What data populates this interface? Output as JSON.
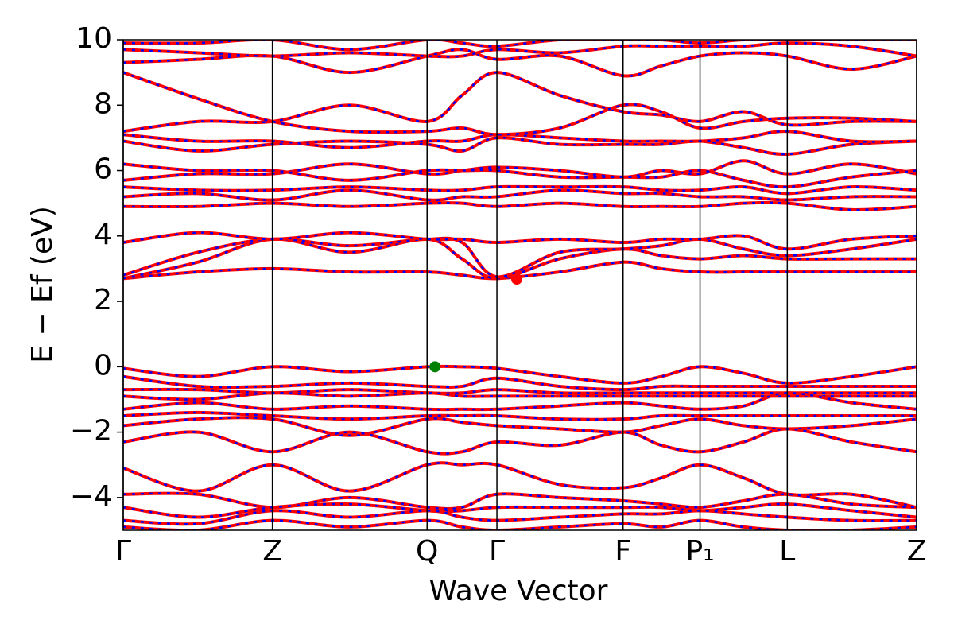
{
  "chart_data": {
    "type": "band_structure",
    "xlabel": "Wave Vector",
    "ylabel": "E − Ef (eV)",
    "xlim": [
      0,
      1
    ],
    "ylim": [
      -5,
      10
    ],
    "xticks": [
      {
        "value": 0,
        "label": "Γ"
      },
      {
        "value": 0.188,
        "label": "Z"
      },
      {
        "value": 0.383,
        "label": "Q"
      },
      {
        "value": 0.471,
        "label": "Γ"
      },
      {
        "value": 0.63,
        "label": "F"
      },
      {
        "value": 0.727,
        "label": "P₁"
      },
      {
        "value": 0.837,
        "label": "L"
      },
      {
        "value": 1.0,
        "label": "Z"
      }
    ],
    "yticks": [
      {
        "value": -4,
        "label": "−4"
      },
      {
        "value": -2,
        "label": "−2"
      },
      0,
      2,
      4,
      6,
      8,
      10
    ],
    "color": "#ff0000",
    "dash_color": "#0000ff",
    "x": [
      0,
      0.094,
      0.188,
      0.285,
      0.383,
      0.427,
      0.471,
      0.55,
      0.63,
      0.678,
      0.727,
      0.782,
      0.837,
      0.918,
      1.0
    ],
    "bands": [
      {
        "values": [
          -0.05,
          -0.3,
          0.0,
          -0.15,
          0.0,
          0.0,
          -0.05,
          -0.3,
          -0.5,
          -0.3,
          0.0,
          -0.2,
          -0.5,
          -0.3,
          0.0
        ]
      },
      {
        "values": [
          -0.3,
          -0.6,
          -0.6,
          -0.5,
          -0.6,
          -0.6,
          -0.35,
          -0.6,
          -0.7,
          -0.6,
          -0.6,
          -0.6,
          -0.6,
          -0.6,
          -0.6
        ]
      },
      {
        "values": [
          -0.7,
          -0.7,
          -0.8,
          -0.7,
          -0.8,
          -0.8,
          -0.7,
          -0.8,
          -0.8,
          -0.8,
          -0.8,
          -0.8,
          -0.8,
          -0.8,
          -0.8
        ]
      },
      {
        "values": [
          -0.9,
          -1.0,
          -0.8,
          -0.9,
          -0.8,
          -0.9,
          -0.9,
          -0.9,
          -0.9,
          -0.9,
          -0.9,
          -0.9,
          -0.9,
          -0.9,
          -0.9
        ]
      },
      {
        "values": [
          -1.3,
          -1.1,
          -1.3,
          -1.2,
          -1.3,
          -1.3,
          -1.3,
          -1.2,
          -1.1,
          -1.2,
          -1.3,
          -1.2,
          -0.8,
          -1.1,
          -1.3
        ]
      },
      {
        "values": [
          -1.5,
          -1.4,
          -1.5,
          -1.6,
          -1.5,
          -1.5,
          -1.5,
          -1.6,
          -1.6,
          -1.5,
          -1.5,
          -1.5,
          -1.5,
          -1.5,
          -1.5
        ]
      },
      {
        "values": [
          -1.8,
          -1.6,
          -1.6,
          -2.1,
          -1.6,
          -1.7,
          -1.8,
          -1.9,
          -2.0,
          -1.8,
          -1.6,
          -1.8,
          -1.9,
          -1.8,
          -1.6
        ]
      },
      {
        "values": [
          -2.3,
          -2.0,
          -2.6,
          -2.0,
          -2.6,
          -2.6,
          -2.3,
          -2.4,
          -2.0,
          -2.4,
          -2.6,
          -2.3,
          -1.9,
          -2.3,
          -2.6
        ]
      },
      {
        "values": [
          -3.1,
          -3.8,
          -3.0,
          -3.8,
          -3.0,
          -3.0,
          -3.0,
          -3.6,
          -3.7,
          -3.4,
          -3.0,
          -3.4,
          -3.9,
          -3.9,
          -4.3
        ]
      },
      {
        "values": [
          -3.9,
          -3.9,
          -4.3,
          -4.0,
          -4.3,
          -4.3,
          -3.9,
          -4.0,
          -4.1,
          -4.2,
          -4.3,
          -4.1,
          -3.9,
          -4.2,
          -4.3
        ]
      },
      {
        "values": [
          -4.3,
          -4.6,
          -4.3,
          -4.2,
          -4.4,
          -4.4,
          -4.3,
          -4.3,
          -4.3,
          -4.3,
          -4.4,
          -4.3,
          -4.2,
          -4.4,
          -4.6
        ]
      },
      {
        "values": [
          -4.7,
          -4.8,
          -4.4,
          -4.6,
          -4.4,
          -4.6,
          -4.7,
          -4.6,
          -4.5,
          -4.5,
          -4.4,
          -4.5,
          -4.6,
          -4.7,
          -4.7
        ]
      },
      {
        "values": [
          -4.9,
          -5.0,
          -4.7,
          -4.9,
          -4.7,
          -4.9,
          -5.0,
          -4.9,
          -4.8,
          -4.9,
          -4.7,
          -4.9,
          -5.0,
          -5.0,
          -4.9
        ]
      },
      {
        "values": [
          2.7,
          2.9,
          3.0,
          2.9,
          2.9,
          2.8,
          2.7,
          2.9,
          3.2,
          3.0,
          2.9,
          2.9,
          2.9,
          2.9,
          2.9
        ]
      },
      {
        "values": [
          2.7,
          3.2,
          3.9,
          3.5,
          3.9,
          3.3,
          2.7,
          3.3,
          3.6,
          3.4,
          3.3,
          3.4,
          3.3,
          3.3,
          3.3
        ]
      },
      {
        "values": [
          2.8,
          3.5,
          3.9,
          3.7,
          3.9,
          3.8,
          2.75,
          3.5,
          3.6,
          3.7,
          3.9,
          3.6,
          3.4,
          3.6,
          3.9
        ]
      },
      {
        "values": [
          3.8,
          4.1,
          3.9,
          4.1,
          3.9,
          3.9,
          3.8,
          3.9,
          3.8,
          3.9,
          3.9,
          4.0,
          3.6,
          3.9,
          4.0
        ]
      },
      {
        "values": [
          4.9,
          4.9,
          5.0,
          4.9,
          5.0,
          5.0,
          4.9,
          5.0,
          4.9,
          4.9,
          4.9,
          5.0,
          5.0,
          4.8,
          4.9
        ]
      },
      {
        "values": [
          5.2,
          5.3,
          5.1,
          5.4,
          5.1,
          5.2,
          5.2,
          5.4,
          5.3,
          5.3,
          5.2,
          5.2,
          5.1,
          5.2,
          5.2
        ]
      },
      {
        "values": [
          5.5,
          5.4,
          5.4,
          5.5,
          5.4,
          5.4,
          5.5,
          5.5,
          5.5,
          5.4,
          5.4,
          5.5,
          5.3,
          5.5,
          5.4
        ]
      },
      {
        "values": [
          5.7,
          5.9,
          5.9,
          6.2,
          5.9,
          6.0,
          6.1,
          6.0,
          5.8,
          6.0,
          5.9,
          6.3,
          5.9,
          6.2,
          5.9
        ]
      },
      {
        "values": [
          6.2,
          6.0,
          6.0,
          5.7,
          6.0,
          6.0,
          6.0,
          5.8,
          5.8,
          5.8,
          6.0,
          5.7,
          5.5,
          5.8,
          6.0
        ]
      },
      {
        "values": [
          6.9,
          6.6,
          6.8,
          6.9,
          6.8,
          6.6,
          7.0,
          6.8,
          6.8,
          6.8,
          6.9,
          6.7,
          6.5,
          6.8,
          6.9
        ]
      },
      {
        "values": [
          7.1,
          6.9,
          6.9,
          6.7,
          6.9,
          6.9,
          7.1,
          7.0,
          6.9,
          6.9,
          6.9,
          7.0,
          7.2,
          6.9,
          6.9
        ]
      },
      {
        "values": [
          7.2,
          7.5,
          7.5,
          8.0,
          7.5,
          8.3,
          9.0,
          8.3,
          7.8,
          7.7,
          7.5,
          7.8,
          7.4,
          7.5,
          7.5
        ]
      },
      {
        "values": [
          9.0,
          8.2,
          7.5,
          7.2,
          7.2,
          7.3,
          7.1,
          7.3,
          8.0,
          7.8,
          7.3,
          7.5,
          7.6,
          7.6,
          7.5
        ]
      },
      {
        "values": [
          9.3,
          9.4,
          9.5,
          9.0,
          9.5,
          9.7,
          9.4,
          9.5,
          8.9,
          9.2,
          9.5,
          9.6,
          9.5,
          9.1,
          9.5
        ]
      },
      {
        "values": [
          9.7,
          9.6,
          9.5,
          9.6,
          9.5,
          9.5,
          9.7,
          9.6,
          9.8,
          9.8,
          9.8,
          9.8,
          9.9,
          9.8,
          9.5
        ]
      },
      {
        "values": [
          9.9,
          9.9,
          10,
          9.7,
          10,
          9.9,
          9.8,
          10,
          10,
          10,
          9.9,
          10,
          10,
          10,
          10
        ]
      }
    ],
    "markers": [
      {
        "x": 0.393,
        "y": 0,
        "color": "#008000"
      },
      {
        "x": 0.496,
        "y": 2.68,
        "color": "#ff0000"
      }
    ]
  }
}
